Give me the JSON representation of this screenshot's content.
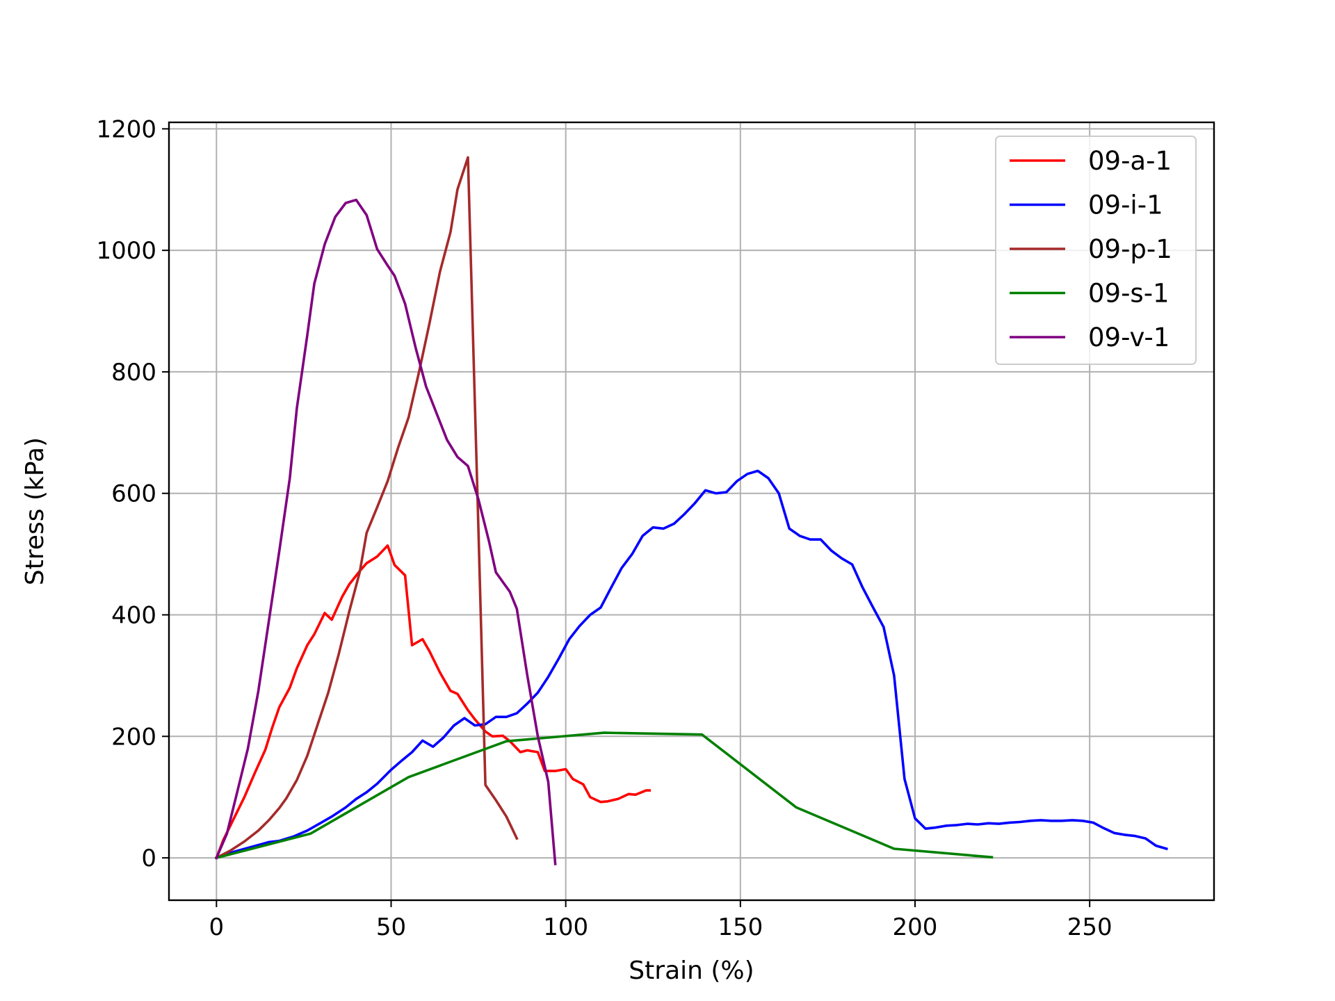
{
  "chart_data": {
    "type": "line",
    "title": "",
    "xlabel": "Strain (%)",
    "ylabel": "Stress (kPa)",
    "xlim": [
      -13.6,
      285.6
    ],
    "ylim": [
      -69.7,
      1210.7
    ],
    "xticks": [
      0,
      50,
      100,
      150,
      200,
      250
    ],
    "yticks": [
      0,
      200,
      400,
      600,
      800,
      1000,
      1200
    ],
    "xtick_labels": [
      "0",
      "50",
      "100",
      "150",
      "200",
      "250"
    ],
    "ytick_labels": [
      "0",
      "200",
      "400",
      "600",
      "800",
      "1000",
      "1200"
    ],
    "grid": true,
    "legend_position": "upper-right",
    "series": [
      {
        "name": "09-a-1",
        "color": "#ff0000",
        "points": [
          [
            0,
            0
          ],
          [
            2,
            30
          ],
          [
            5,
            65
          ],
          [
            8,
            100
          ],
          [
            11,
            140
          ],
          [
            14,
            178
          ],
          [
            16,
            215
          ],
          [
            18,
            248
          ],
          [
            21,
            280
          ],
          [
            23,
            312
          ],
          [
            26,
            350
          ],
          [
            28,
            368
          ],
          [
            31,
            403
          ],
          [
            33,
            392
          ],
          [
            36,
            430
          ],
          [
            38,
            450
          ],
          [
            41,
            472
          ],
          [
            43,
            485
          ],
          [
            46,
            496
          ],
          [
            49,
            514
          ],
          [
            51,
            482
          ],
          [
            54,
            465
          ],
          [
            56,
            350
          ],
          [
            59,
            360
          ],
          [
            61,
            340
          ],
          [
            64,
            305
          ],
          [
            67,
            275
          ],
          [
            69,
            270
          ],
          [
            72,
            243
          ],
          [
            74,
            228
          ],
          [
            77,
            208
          ],
          [
            79,
            200
          ],
          [
            82,
            201
          ],
          [
            84,
            192
          ],
          [
            87,
            174
          ],
          [
            89,
            177
          ],
          [
            92,
            174
          ],
          [
            94,
            143
          ],
          [
            97,
            143
          ],
          [
            100,
            146
          ],
          [
            102,
            130
          ],
          [
            105,
            121
          ],
          [
            107,
            100
          ],
          [
            110,
            92
          ],
          [
            112,
            93
          ],
          [
            115,
            97
          ],
          [
            118,
            105
          ],
          [
            120,
            104
          ],
          [
            123,
            111
          ],
          [
            124,
            111
          ]
        ]
      },
      {
        "name": "09-i-1",
        "color": "#0000ff",
        "points": [
          [
            0,
            0
          ],
          [
            5,
            10
          ],
          [
            10,
            18
          ],
          [
            15,
            26
          ],
          [
            18,
            28
          ],
          [
            22,
            35
          ],
          [
            26,
            45
          ],
          [
            30,
            58
          ],
          [
            33,
            68
          ],
          [
            37,
            83
          ],
          [
            40,
            97
          ],
          [
            43,
            108
          ],
          [
            46,
            122
          ],
          [
            50,
            145
          ],
          [
            53,
            160
          ],
          [
            56,
            174
          ],
          [
            59,
            193
          ],
          [
            62,
            183
          ],
          [
            65,
            198
          ],
          [
            68,
            218
          ],
          [
            71,
            230
          ],
          [
            74,
            218
          ],
          [
            77,
            220
          ],
          [
            80,
            232
          ],
          [
            83,
            232
          ],
          [
            86,
            238
          ],
          [
            89,
            254
          ],
          [
            92,
            272
          ],
          [
            95,
            298
          ],
          [
            98,
            328
          ],
          [
            101,
            360
          ],
          [
            104,
            382
          ],
          [
            107,
            400
          ],
          [
            110,
            412
          ],
          [
            113,
            445
          ],
          [
            116,
            477
          ],
          [
            119,
            500
          ],
          [
            122,
            530
          ],
          [
            125,
            544
          ],
          [
            128,
            542
          ],
          [
            131,
            550
          ],
          [
            134,
            566
          ],
          [
            137,
            584
          ],
          [
            140,
            605
          ],
          [
            143,
            600
          ],
          [
            146,
            602
          ],
          [
            149,
            620
          ],
          [
            152,
            632
          ],
          [
            155,
            637
          ],
          [
            158,
            625
          ],
          [
            161,
            600
          ],
          [
            164,
            542
          ],
          [
            167,
            530
          ],
          [
            170,
            524
          ],
          [
            173,
            524
          ],
          [
            176,
            506
          ],
          [
            179,
            493
          ],
          [
            182,
            483
          ],
          [
            185,
            445
          ],
          [
            188,
            412
          ],
          [
            191,
            380
          ],
          [
            194,
            300
          ],
          [
            197,
            130
          ],
          [
            200,
            65
          ],
          [
            203,
            48
          ],
          [
            206,
            50
          ],
          [
            209,
            53
          ],
          [
            212,
            54
          ],
          [
            215,
            56
          ],
          [
            218,
            55
          ],
          [
            221,
            57
          ],
          [
            224,
            56
          ],
          [
            227,
            58
          ],
          [
            230,
            59
          ],
          [
            233,
            61
          ],
          [
            236,
            62
          ],
          [
            239,
            61
          ],
          [
            242,
            61
          ],
          [
            245,
            62
          ],
          [
            248,
            61
          ],
          [
            251,
            58
          ],
          [
            254,
            49
          ],
          [
            257,
            41
          ],
          [
            260,
            38
          ],
          [
            263,
            36
          ],
          [
            266,
            32
          ],
          [
            269,
            20
          ],
          [
            272,
            15
          ]
        ]
      },
      {
        "name": "09-p-1",
        "color": "#a52a2a",
        "points": [
          [
            0,
            0
          ],
          [
            4,
            12
          ],
          [
            8,
            27
          ],
          [
            12,
            45
          ],
          [
            15,
            62
          ],
          [
            18,
            82
          ],
          [
            20,
            98
          ],
          [
            23,
            128
          ],
          [
            26,
            168
          ],
          [
            29,
            220
          ],
          [
            32,
            272
          ],
          [
            35,
            335
          ],
          [
            38,
            405
          ],
          [
            41,
            470
          ],
          [
            43,
            535
          ],
          [
            46,
            577
          ],
          [
            49,
            620
          ],
          [
            52,
            675
          ],
          [
            55,
            725
          ],
          [
            58,
            800
          ],
          [
            61,
            880
          ],
          [
            64,
            965
          ],
          [
            67,
            1030
          ],
          [
            69,
            1100
          ],
          [
            72,
            1153
          ],
          [
            75,
            540
          ],
          [
            77,
            120
          ],
          [
            80,
            95
          ],
          [
            83,
            68
          ],
          [
            86,
            32
          ]
        ]
      },
      {
        "name": "09-s-1",
        "color": "#008000",
        "points": [
          [
            0,
            0
          ],
          [
            27,
            40
          ],
          [
            55,
            133
          ],
          [
            83,
            192
          ],
          [
            111,
            206
          ],
          [
            139,
            203
          ],
          [
            166,
            83
          ],
          [
            194,
            15
          ],
          [
            222,
            1
          ]
        ]
      },
      {
        "name": "09-v-1",
        "color": "#800080",
        "points": [
          [
            0,
            0
          ],
          [
            3,
            40
          ],
          [
            6,
            110
          ],
          [
            9,
            180
          ],
          [
            12,
            275
          ],
          [
            15,
            390
          ],
          [
            18,
            505
          ],
          [
            21,
            625
          ],
          [
            23,
            740
          ],
          [
            26,
            860
          ],
          [
            28,
            945
          ],
          [
            31,
            1010
          ],
          [
            34,
            1055
          ],
          [
            37,
            1078
          ],
          [
            40,
            1083
          ],
          [
            43,
            1058
          ],
          [
            46,
            1002
          ],
          [
            49,
            975
          ],
          [
            51,
            958
          ],
          [
            54,
            912
          ],
          [
            57,
            840
          ],
          [
            60,
            776
          ],
          [
            63,
            732
          ],
          [
            66,
            688
          ],
          [
            69,
            660
          ],
          [
            72,
            645
          ],
          [
            75,
            590
          ],
          [
            78,
            522
          ],
          [
            80,
            470
          ],
          [
            84,
            438
          ],
          [
            86,
            410
          ],
          [
            89,
            300
          ],
          [
            92,
            200
          ],
          [
            95,
            125
          ],
          [
            97,
            -10
          ]
        ]
      }
    ]
  }
}
